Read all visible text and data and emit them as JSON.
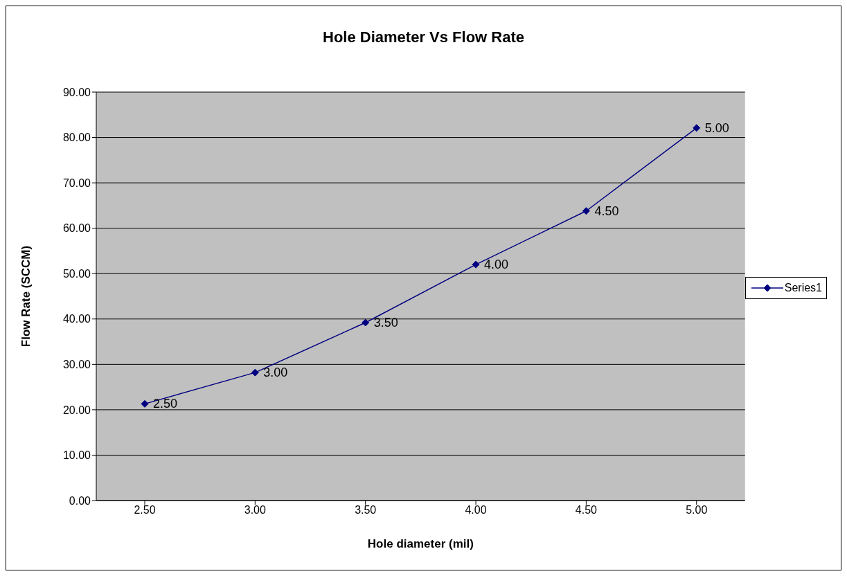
{
  "chart_data": {
    "type": "line",
    "title": "Hole Diameter Vs Flow Rate",
    "xlabel": "Hole diameter (mil)",
    "ylabel": "Flow Rate (SCCM)",
    "categories": [
      "2.50",
      "3.00",
      "3.50",
      "4.00",
      "4.50",
      "5.00"
    ],
    "series": [
      {
        "name": "Series1",
        "color": "#000080",
        "values": [
          21.3,
          28.2,
          39.2,
          52.0,
          63.8,
          82.1
        ]
      }
    ],
    "annotations": [
      {
        "text": "2.50",
        "x": "2.50",
        "y": 21.3
      },
      {
        "text": "3.00",
        "x": "3.00",
        "y": 28.2
      },
      {
        "text": "3.50",
        "x": "3.50",
        "y": 39.2
      },
      {
        "text": "4.00",
        "x": "4.00",
        "y": 52.0
      },
      {
        "text": "4.50",
        "x": "4.50",
        "y": 63.8
      },
      {
        "text": "5.00",
        "x": "5.00",
        "y": 82.1
      }
    ],
    "ylim": [
      0,
      90
    ],
    "yticks": [
      {
        "value": 0,
        "label": "0.00"
      },
      {
        "value": 10,
        "label": "10.00"
      },
      {
        "value": 20,
        "label": "20.00"
      },
      {
        "value": 30,
        "label": "30.00"
      },
      {
        "value": 40,
        "label": "40.00"
      },
      {
        "value": 50,
        "label": "50.00"
      },
      {
        "value": 60,
        "label": "60.00"
      },
      {
        "value": 70,
        "label": "70.00"
      },
      {
        "value": 80,
        "label": "80.00"
      },
      {
        "value": 90,
        "label": "90.00"
      }
    ],
    "grid": "y",
    "legend": "right",
    "marker": "diamond",
    "line_style": "solid"
  }
}
